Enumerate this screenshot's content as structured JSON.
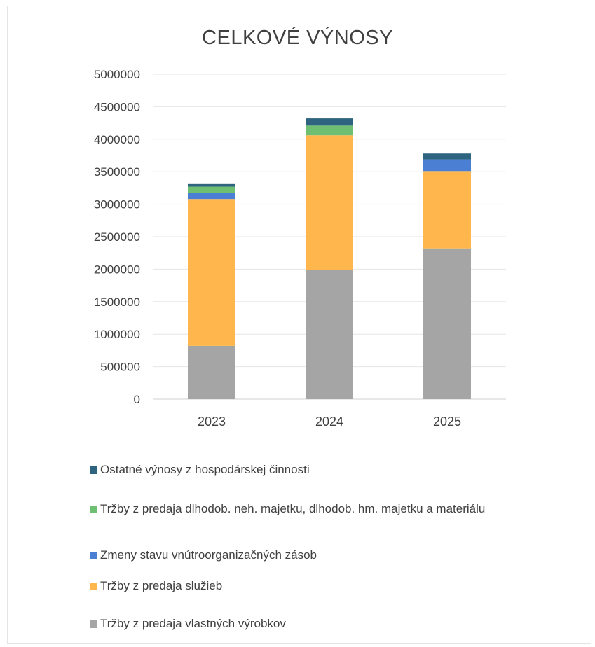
{
  "chart_data": {
    "type": "bar",
    "stacked": true,
    "title": "CELKOVÉ VÝNOSY",
    "categories": [
      "2023",
      "2024",
      "2025"
    ],
    "ylim": [
      0,
      5000000
    ],
    "yticks": [
      0,
      500000,
      1000000,
      1500000,
      2000000,
      2500000,
      3000000,
      3500000,
      4000000,
      4500000,
      5000000
    ],
    "grid": true,
    "legend_position": "bottom",
    "series": [
      {
        "name": "Tržby z predaja vlastných výrobkov",
        "color": "#a5a5a5",
        "values": [
          820000,
          1990000,
          2320000
        ]
      },
      {
        "name": "Tržby z predaja služieb",
        "color": "#ffb74d",
        "values": [
          2260000,
          2070000,
          1190000
        ]
      },
      {
        "name": "Zmeny stavu vnútroorganizačných zásob",
        "color": "#4a7fd4",
        "values": [
          90000,
          0,
          180000
        ]
      },
      {
        "name": "Tržby z predaja dlhodob. neh. majetku, dlhodob. hm. majetku a materiálu",
        "color": "#6fbf73",
        "values": [
          100000,
          150000,
          0
        ]
      },
      {
        "name": "Ostatné výnosy z hospodárskej činnosti",
        "color": "#2e6480",
        "values": [
          40000,
          110000,
          90000
        ]
      }
    ],
    "legend_order": [
      4,
      3,
      2,
      1,
      0
    ]
  }
}
